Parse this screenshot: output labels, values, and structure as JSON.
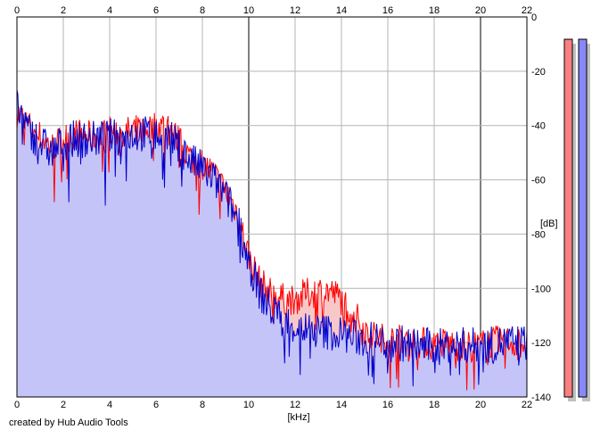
{
  "credit": "created by Hub Audio Tools",
  "colors": {
    "background": "#ffffff",
    "plot_background": "#ffffff",
    "grid": "#b4b4b4",
    "grid_major": "#808080",
    "left_channel": "#ff0000",
    "right_channel": "#0000cc",
    "right_fill": "#c4c4f8",
    "left_fill": "#f8c8c8",
    "left_meter": "#f88080",
    "right_meter": "#8888f8",
    "meter_shadow": "#c0c0c0"
  },
  "chart_data": {
    "type": "area",
    "title": "",
    "xlabel": "[kHz]",
    "ylabel": "[dB]",
    "xlim": [
      0,
      22
    ],
    "ylim": [
      -140,
      0
    ],
    "x_ticks": [
      "0",
      "2",
      "4",
      "6",
      "8",
      "10",
      "12",
      "14",
      "16",
      "18",
      "20",
      "22"
    ],
    "y_ticks": [
      "0",
      "-20",
      "-40",
      "-60",
      "-80",
      "-100",
      "-120",
      "-140"
    ],
    "grid": true,
    "x": [
      0,
      0.5,
      1,
      1.5,
      2,
      2.5,
      3,
      3.5,
      4,
      4.5,
      5,
      5.5,
      6,
      6.5,
      7,
      7.5,
      8,
      8.5,
      9,
      9.5,
      10,
      10.5,
      11,
      11.5,
      12,
      12.5,
      13,
      13.5,
      14,
      14.5,
      15,
      15.5,
      16,
      16.5,
      17,
      17.5,
      18,
      18.5,
      19,
      19.5,
      20,
      20.5,
      21,
      21.5,
      22
    ],
    "series": [
      {
        "color": "red",
        "values": [
          -35,
          -40,
          -44,
          -48,
          -45,
          -43,
          -44,
          -44,
          -42,
          -43,
          -42,
          -41,
          -40,
          -40,
          -46,
          -52,
          -54,
          -58,
          -64,
          -72,
          -88,
          -98,
          -102,
          -104,
          -104,
          -102,
          -101,
          -101,
          -104,
          -109,
          -115,
          -118,
          -119,
          -119,
          -120,
          -120,
          -121,
          -120,
          -121,
          -121,
          -121,
          -120,
          -119,
          -120,
          -120
        ]
      },
      {
        "color": "blue",
        "values": [
          -33,
          -42,
          -46,
          -50,
          -46,
          -45,
          -45,
          -45,
          -44,
          -45,
          -43,
          -43,
          -44,
          -44,
          -48,
          -53,
          -56,
          -60,
          -66,
          -74,
          -90,
          -102,
          -108,
          -112,
          -114,
          -115,
          -116,
          -116,
          -117,
          -118,
          -119,
          -119,
          -120,
          -120,
          -121,
          -121,
          -122,
          -121,
          -121,
          -121,
          -121,
          -121,
          -120,
          -120,
          -120
        ]
      }
    ]
  },
  "meters": {
    "left_level": 1.0,
    "right_level": 1.0
  }
}
